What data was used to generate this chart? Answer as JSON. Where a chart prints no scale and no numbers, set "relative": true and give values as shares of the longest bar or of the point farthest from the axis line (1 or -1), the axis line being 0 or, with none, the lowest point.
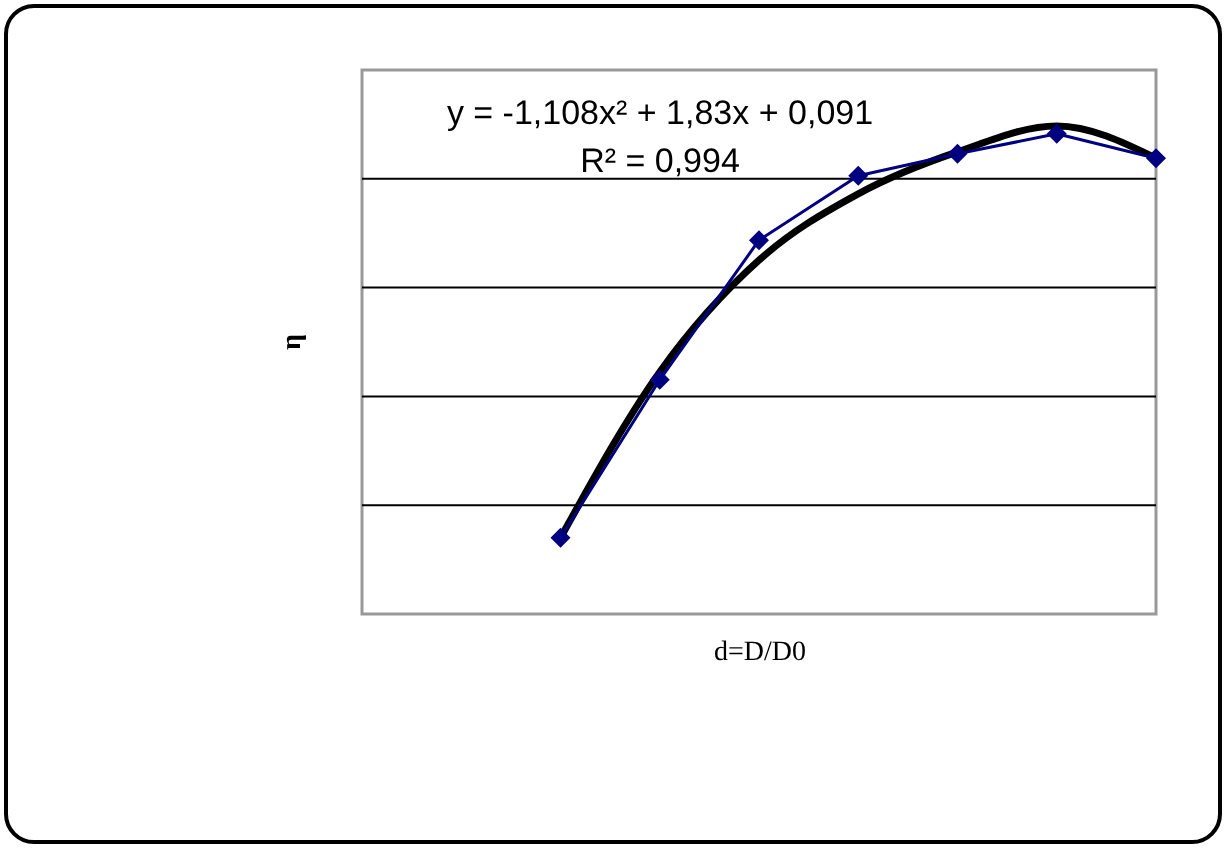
{
  "chart_data": {
    "type": "line",
    "relative": true,
    "xlabel": "d=D/D0",
    "ylabel": "η",
    "categories": [
      null,
      null,
      null,
      null,
      null,
      null,
      null,
      null,
      null
    ],
    "grid": "y",
    "series": [
      {
        "color": "#000080",
        "marker": "diamond",
        "values": [
          null,
          null,
          0.156,
          0.48,
          0.766,
          0.898,
          0.943,
          0.984,
          0.934
        ]
      },
      {
        "type": "line",
        "color": "#000000",
        "marker": "none",
        "values": [
          null,
          null,
          0.156,
          0.496,
          0.725,
          0.861,
          0.947,
          1,
          0.934
        ]
      }
    ],
    "annotations": [
      "y = -1,108x² + 1,83x + 0,091",
      "R² = 0,994"
    ]
  }
}
